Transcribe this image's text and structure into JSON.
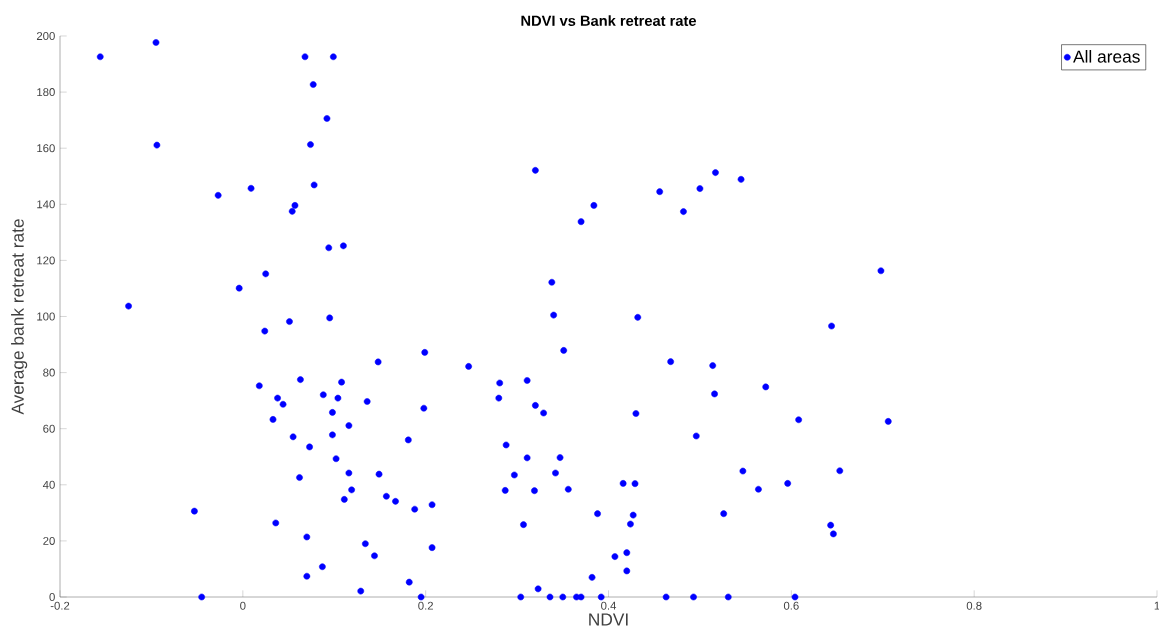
{
  "chart_data": {
    "type": "scatter",
    "title": "NDVI vs Bank retreat rate",
    "xlabel": "NDVI",
    "ylabel": "Average bank retreat rate",
    "xlim": [
      -0.2,
      1
    ],
    "ylim": [
      0,
      200
    ],
    "xticks": [
      -0.2,
      0,
      0.2,
      0.4,
      0.6,
      0.8,
      1
    ],
    "yticks": [
      0,
      20,
      40,
      60,
      80,
      100,
      120,
      140,
      160,
      180,
      200
    ],
    "legend": "top right",
    "marker": "circle",
    "series": [
      {
        "name": "All areas",
        "color": "#0000ff",
        "x": [
          -0.156,
          -0.095,
          0.068,
          0.099,
          0.077,
          0.092,
          -0.094,
          0.074,
          -0.027,
          0.009,
          0.078,
          0.057,
          0.054,
          0.094,
          0.11,
          0.025,
          -0.004,
          -0.125,
          0.024,
          0.051,
          0.095,
          0.199,
          0.148,
          0.018,
          0.063,
          0.108,
          0.038,
          0.044,
          0.088,
          0.104,
          0.136,
          0.198,
          0.033,
          0.098,
          0.116,
          0.055,
          0.098,
          0.181,
          0.073,
          0.102,
          0.062,
          0.116,
          0.149,
          0.119,
          0.111,
          0.157,
          0.167,
          0.188,
          0.207,
          -0.053,
          0.036,
          0.07,
          0.134,
          0.207,
          0.144,
          0.087,
          0.07,
          0.182,
          0.129,
          -0.045,
          0.195,
          0.32,
          0.384,
          0.37,
          0.456,
          0.482,
          0.5,
          0.517,
          0.545,
          0.698,
          0.338,
          0.34,
          0.432,
          0.644,
          0.351,
          0.247,
          0.468,
          0.514,
          0.281,
          0.311,
          0.28,
          0.32,
          0.329,
          0.43,
          0.516,
          0.572,
          0.608,
          0.706,
          0.496,
          0.288,
          0.311,
          0.347,
          0.342,
          0.297,
          0.287,
          0.319,
          0.356,
          0.416,
          0.429,
          0.547,
          0.564,
          0.596,
          0.653,
          0.388,
          0.427,
          0.424,
          0.307,
          0.526,
          0.643,
          0.646,
          0.42,
          0.407,
          0.42,
          0.382,
          0.323,
          0.304,
          0.336,
          0.35,
          0.365,
          0.37,
          0.392,
          0.463,
          0.493,
          0.531,
          0.604
        ],
        "values": [
          192.6,
          197.7,
          192.6,
          192.6,
          182.7,
          170.6,
          161.1,
          161.3,
          143.2,
          145.7,
          146.9,
          139.6,
          137.5,
          124.5,
          125.2,
          115.2,
          110.1,
          103.7,
          94.8,
          98.2,
          99.5,
          87.2,
          83.8,
          75.3,
          77.5,
          76.6,
          70.9,
          68.7,
          72.1,
          70.9,
          69.7,
          67.3,
          63.3,
          65.8,
          61.1,
          57.1,
          57.8,
          56.0,
          53.5,
          49.3,
          42.6,
          44.2,
          43.8,
          38.2,
          34.8,
          35.9,
          34.1,
          31.3,
          32.9,
          30.6,
          26.4,
          21.4,
          19.0,
          17.6,
          14.7,
          10.8,
          7.4,
          5.3,
          2.1,
          0,
          0,
          152.1,
          139.6,
          133.8,
          144.5,
          137.4,
          145.6,
          151.3,
          148.9,
          116.3,
          112.2,
          100.5,
          99.7,
          96.6,
          87.9,
          82.2,
          83.9,
          82.5,
          76.3,
          77.2,
          70.9,
          68.3,
          65.6,
          65.4,
          72.4,
          74.9,
          63.2,
          62.6,
          57.4,
          54.2,
          49.6,
          49.7,
          44.2,
          43.5,
          38.0,
          37.9,
          38.4,
          40.5,
          40.4,
          44.9,
          38.4,
          40.5,
          45.0,
          29.7,
          29.2,
          26.0,
          25.8,
          29.7,
          25.6,
          22.5,
          15.8,
          14.4,
          9.3,
          7.0,
          2.9,
          0,
          0,
          0,
          0,
          0,
          0,
          0,
          0,
          0,
          0
        ]
      }
    ]
  }
}
